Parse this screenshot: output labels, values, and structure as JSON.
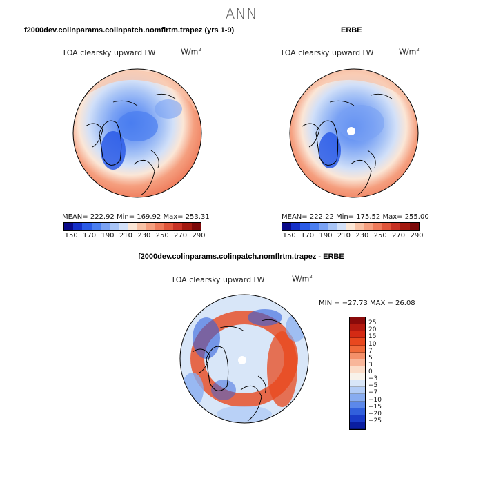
{
  "main_title": "ANN",
  "panels": {
    "top_left": {
      "title": "f2000dev.colinparams.colinpatch.nomflrtm.trapez (yrs 1-9)",
      "label": "TOA clearsky upward LW",
      "units": "W/m",
      "units_sup": "2",
      "stats": "MEAN= 222.92   Min= 169.92   Max= 253.31"
    },
    "top_right": {
      "title": "ERBE",
      "label": "TOA clearsky upward LW",
      "units": "W/m",
      "units_sup": "2",
      "stats": "MEAN= 222.22   Min= 175.52   Max= 255.00"
    },
    "bottom": {
      "title": "f2000dev.colinparams.colinpatch.nomflrtm.trapez - ERBE",
      "label": "TOA clearsky upward LW",
      "units": "W/m",
      "units_sup": "2",
      "stats": "MIN = −27.73 MAX =  26.08"
    }
  },
  "colorbar_abs": {
    "labels": [
      "150",
      "170",
      "190",
      "210",
      "230",
      "250",
      "270",
      "290"
    ],
    "colors": [
      "#0a0a8a",
      "#1530c8",
      "#2a5ae6",
      "#4a7ef0",
      "#7aa2f4",
      "#a8c4f6",
      "#d2e0f8",
      "#fbe6d6",
      "#f8c2a6",
      "#f59f7f",
      "#ee7a5a",
      "#e0553a",
      "#c83224",
      "#a3190f",
      "#7c0808"
    ]
  },
  "colorbar_diff": {
    "labels": [
      "25",
      "20",
      "15",
      "10",
      "7",
      "5",
      "3",
      "0",
      "−3",
      "−5",
      "−7",
      "−10",
      "−15",
      "−20",
      "−25"
    ],
    "colors": [
      "#8a0a0a",
      "#b41a10",
      "#d42a14",
      "#e8481e",
      "#f06a3a",
      "#f4906a",
      "#f8b69a",
      "#fbdcc8",
      "#f8f2ea",
      "#d8e6f8",
      "#b2ccf6",
      "#88acf0",
      "#5c88ea",
      "#3260dc",
      "#1a3cc8",
      "#0a1ea0"
    ]
  }
}
